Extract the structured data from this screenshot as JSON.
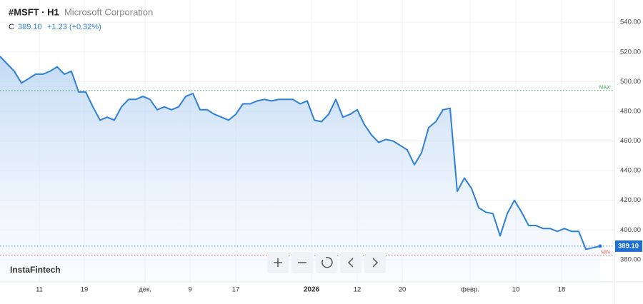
{
  "chart_data": {
    "type": "line",
    "title": "#MSFT · H1",
    "subtitle": "Microsoft Corporation",
    "close_label": "C",
    "last": {
      "value": 389.1,
      "label": "389.10"
    },
    "change": "+1.23 (+0.32%)",
    "watermark": "InstaFintech",
    "color": "#2d7fd9",
    "grid": true,
    "x": [
      0,
      1,
      2,
      3,
      4,
      5,
      6,
      7,
      8,
      9,
      10,
      11,
      12,
      13,
      14,
      15,
      16,
      17,
      18,
      19,
      20,
      21,
      22,
      23,
      24,
      25,
      26,
      27,
      28,
      29,
      30,
      31,
      32,
      33,
      34,
      35,
      36,
      37,
      38,
      39,
      40,
      41,
      42,
      43,
      44,
      45,
      46,
      47,
      48,
      49,
      50,
      51,
      52,
      53,
      54,
      55,
      56,
      57,
      58,
      59,
      60,
      61,
      62,
      63,
      64,
      65,
      66,
      67,
      68,
      69,
      70,
      71,
      72,
      73,
      74,
      75,
      76,
      77,
      78,
      79,
      80,
      81,
      82,
      83,
      84
    ],
    "values": [
      517,
      512,
      507,
      499,
      502,
      505,
      505,
      507,
      510,
      505,
      507,
      493,
      493,
      483,
      474,
      476,
      474,
      483,
      488,
      488,
      490,
      488,
      481,
      483,
      481,
      483,
      490,
      492,
      481,
      481,
      478,
      476,
      474,
      478,
      485,
      485,
      487,
      488,
      487,
      488,
      488,
      488,
      485,
      487,
      474,
      473,
      478,
      488,
      476,
      478,
      481,
      471,
      464,
      459,
      461,
      460,
      457,
      454,
      444,
      452,
      469,
      473,
      481,
      482,
      426,
      435,
      428,
      415,
      412,
      411,
      396,
      411,
      420,
      412,
      403,
      403,
      401,
      401,
      399,
      401,
      399,
      399,
      387,
      388,
      389.1
    ],
    "xlim": [
      0,
      86
    ],
    "xticks": [
      {
        "value": 5.5,
        "label": "11"
      },
      {
        "value": 11.8,
        "label": "19"
      },
      {
        "value": 20.3,
        "label": "дек."
      },
      {
        "value": 26.6,
        "label": "9"
      },
      {
        "value": 33,
        "label": "17"
      },
      {
        "value": 43.6,
        "label": "2026"
      },
      {
        "value": 50,
        "label": "12"
      },
      {
        "value": 56.3,
        "label": "20"
      },
      {
        "value": 65.8,
        "label": "февр."
      },
      {
        "value": 72.2,
        "label": "10"
      },
      {
        "value": 78.6,
        "label": "18"
      }
    ],
    "ylim": [
      365,
      555
    ],
    "yticks": [
      {
        "value": 380,
        "label": "380.00"
      },
      {
        "value": 400,
        "label": "400.00"
      },
      {
        "value": 420,
        "label": "420.00"
      },
      {
        "value": 440,
        "label": "440.00"
      },
      {
        "value": 460,
        "label": "460.00"
      },
      {
        "value": 480,
        "label": "480.00"
      },
      {
        "value": 500,
        "label": "500.00"
      },
      {
        "value": 520,
        "label": "520.00"
      },
      {
        "value": 540,
        "label": "540.00"
      }
    ],
    "max_line": {
      "value": 494,
      "label": "MAX"
    },
    "min_line": {
      "value": 383,
      "label": "MIN"
    }
  }
}
